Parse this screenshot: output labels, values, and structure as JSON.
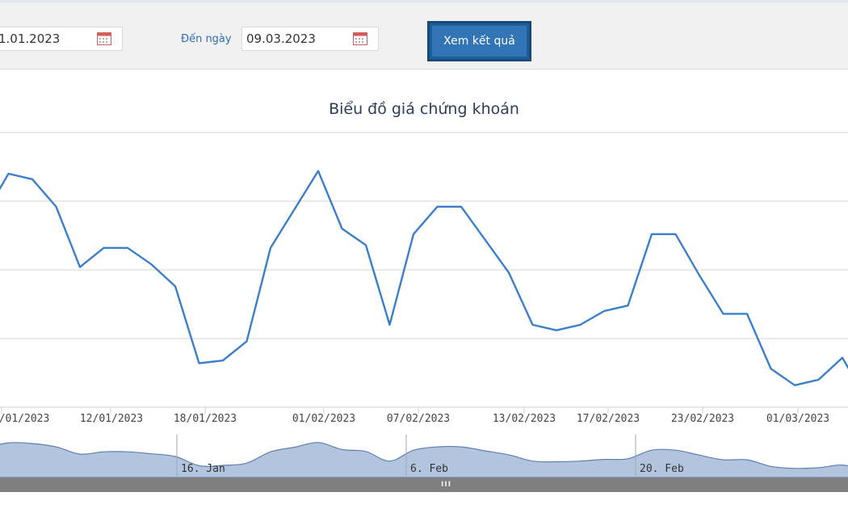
{
  "filter": {
    "from_date": "1.01.2023",
    "to_label": "Đến ngày",
    "to_date": "09.03.2023",
    "submit_label": "Xem kết quả"
  },
  "chart_data": {
    "type": "line",
    "title": "Biểu đồ giá chứng khoán",
    "color": "#3a7fcc",
    "x_tick_labels": [
      "/01/2023",
      "12/01/2023",
      "18/01/2023",
      "01/02/2023",
      "07/02/2023",
      "13/02/2023",
      "17/02/2023",
      "23/02/2023",
      "01/03/2023"
    ],
    "navigator_labels": [
      "16. Jan",
      "6. Feb",
      "20. Feb"
    ],
    "y": [
      7.0,
      8.5,
      8.3,
      7.3,
      5.1,
      5.8,
      5.8,
      5.2,
      4.4,
      1.6,
      1.7,
      2.4,
      5.8,
      7.2,
      8.6,
      6.5,
      5.9,
      3.0,
      6.3,
      7.3,
      7.3,
      6.1,
      4.9,
      3.0,
      2.8,
      3.0,
      3.5,
      3.7,
      6.3,
      6.3,
      4.8,
      3.4,
      3.4,
      1.4,
      0.8,
      1.0,
      1.8,
      0.3
    ]
  },
  "scrollbar": {
    "grip": "III"
  }
}
